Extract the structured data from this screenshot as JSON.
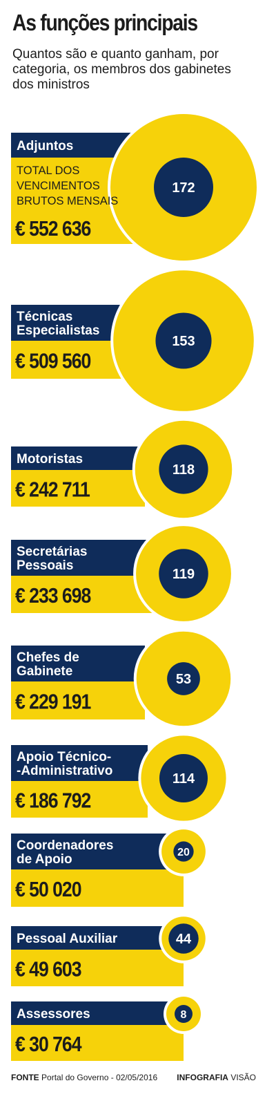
{
  "title": "As funções principais",
  "subtitle": "Quantos são e quanto ganham, por categoria, os membros dos gabinetes dos ministros",
  "chart_data": {
    "type": "bubble",
    "categories": [
      {
        "label_lines": [
          "Adjuntos"
        ],
        "note_lines": [
          "TOTAL DOS",
          "VENCIMENTOS",
          "BRUTOS MENSAIS"
        ],
        "amount_label": "€ 552 636",
        "amount": 552636,
        "count_label": "172",
        "count": 172
      },
      {
        "label_lines": [
          "Técnicas",
          "Especialistas"
        ],
        "note_lines": [],
        "amount_label": "€ 509 560",
        "amount": 509560,
        "count_label": "153",
        "count": 153
      },
      {
        "label_lines": [
          "Motoristas"
        ],
        "note_lines": [],
        "amount_label": "€ 242 711",
        "amount": 242711,
        "count_label": "118",
        "count": 118
      },
      {
        "label_lines": [
          "Secretárias",
          "Pessoais"
        ],
        "note_lines": [],
        "amount_label": "€ 233 698",
        "amount": 233698,
        "count_label": "119",
        "count": 119
      },
      {
        "label_lines": [
          "Chefes de",
          "Gabinete"
        ],
        "note_lines": [],
        "amount_label": "€ 229 191",
        "amount": 229191,
        "count_label": "53",
        "count": 53
      },
      {
        "label_lines": [
          "Apoio Técnico-",
          "-Administrativo"
        ],
        "note_lines": [],
        "amount_label": "€ 186 792",
        "amount": 186792,
        "count_label": "114",
        "count": 114
      },
      {
        "label_lines": [
          "Coordenadores",
          "de Apoio"
        ],
        "note_lines": [],
        "amount_label": "€ 50 020",
        "amount": 50020,
        "count_label": "20",
        "count": 20
      },
      {
        "label_lines": [
          "Pessoal Auxiliar"
        ],
        "note_lines": [],
        "amount_label": "€ 49 603",
        "amount": 49603,
        "count_label": "44",
        "count": 44
      },
      {
        "label_lines": [
          "Assessores"
        ],
        "note_lines": [],
        "amount_label": "€ 30 764",
        "amount": 30764,
        "count_label": "8",
        "count": 8
      }
    ],
    "colors": {
      "navy": "#0f2c5a",
      "yellow": "#f6d20a"
    }
  },
  "footer": {
    "source_key": "FONTE",
    "source_text": "Portal do Governo - 02/05/2016",
    "credit_key": "INFOGRAFIA",
    "credit_text": "VISÃO"
  }
}
